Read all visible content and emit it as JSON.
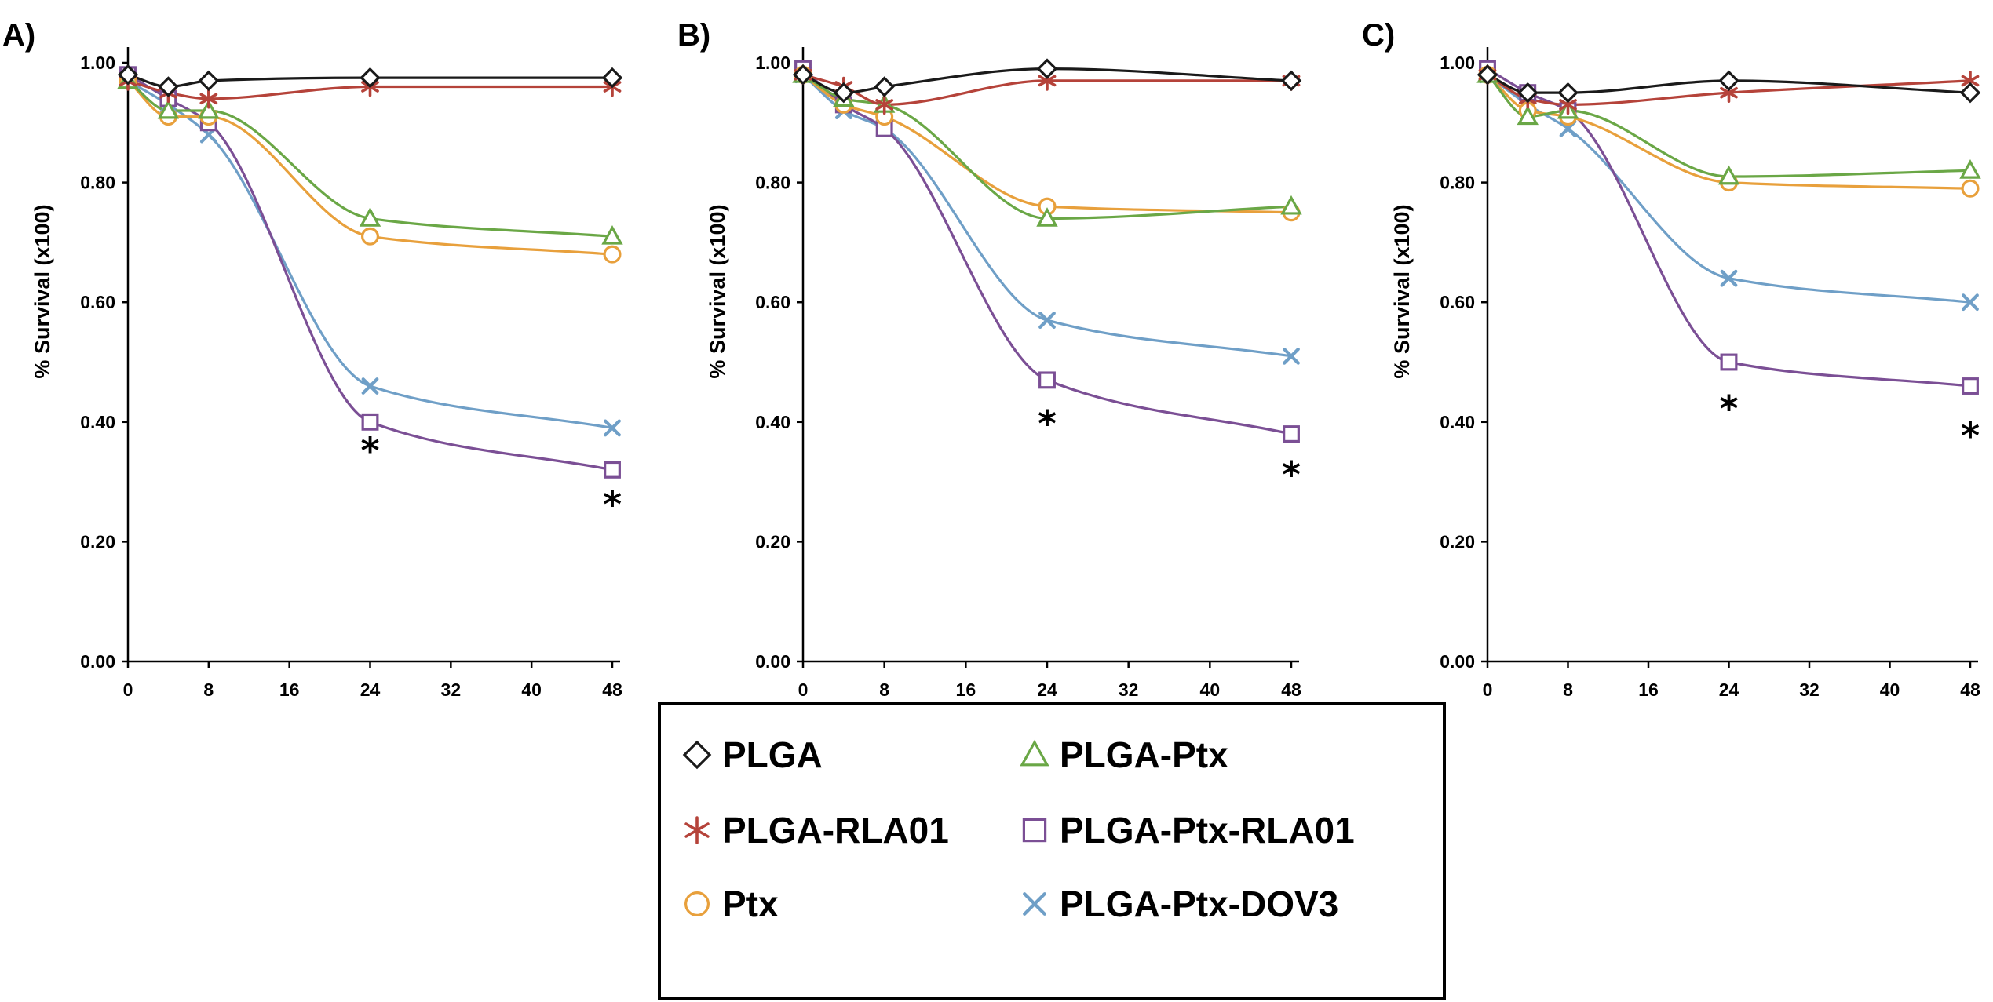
{
  "chart_data": [
    {
      "type": "line",
      "panel_label": "A)",
      "ylabel": "% Survival (x100)",
      "xlabel": "",
      "xlim": [
        0,
        48
      ],
      "ylim": [
        0,
        1
      ],
      "xticks": [
        0,
        8,
        16,
        24,
        32,
        40,
        48
      ],
      "yticks": [
        0.0,
        0.2,
        0.4,
        0.6,
        0.8,
        1.0
      ],
      "xtick_labels": [
        "0",
        "8",
        "16",
        "24",
        "32",
        "40",
        "48"
      ],
      "ytick_labels": [
        "0.00",
        "0.20",
        "0.40",
        "0.60",
        "0.80",
        "1.00"
      ],
      "x": [
        0,
        4,
        8,
        24,
        48
      ],
      "series": [
        {
          "key": "plga",
          "name": "PLGA",
          "values": [
            0.98,
            0.96,
            0.97,
            0.975,
            0.975
          ]
        },
        {
          "key": "plga_rla01",
          "name": "PLGA-RLA01",
          "values": [
            0.97,
            0.95,
            0.94,
            0.96,
            0.96
          ]
        },
        {
          "key": "ptx",
          "name": "Ptx",
          "values": [
            0.97,
            0.91,
            0.91,
            0.71,
            0.68
          ]
        },
        {
          "key": "plga_ptx",
          "name": "PLGA-Ptx",
          "values": [
            0.97,
            0.92,
            0.92,
            0.74,
            0.71
          ]
        },
        {
          "key": "plga_ptx_rla01",
          "name": "PLGA-Ptx-RLA01",
          "values": [
            0.98,
            0.94,
            0.9,
            0.4,
            0.32
          ]
        },
        {
          "key": "plga_ptx_dov3",
          "name": "PLGA-Ptx-DOV3",
          "values": [
            0.97,
            0.93,
            0.88,
            0.46,
            0.39
          ]
        }
      ],
      "significance": [
        {
          "x": 24,
          "y": 0.365,
          "label": "*"
        },
        {
          "x": 48,
          "y": 0.275,
          "label": "*"
        }
      ]
    },
    {
      "type": "line",
      "panel_label": "B)",
      "ylabel": "% Survival (x100)",
      "xlabel": "",
      "xlim": [
        0,
        48
      ],
      "ylim": [
        0,
        1
      ],
      "xticks": [
        0,
        8,
        16,
        24,
        32,
        40,
        48
      ],
      "yticks": [
        0.0,
        0.2,
        0.4,
        0.6,
        0.8,
        1.0
      ],
      "xtick_labels": [
        "0",
        "8",
        "16",
        "24",
        "32",
        "40",
        "48"
      ],
      "ytick_labels": [
        "0.00",
        "0.20",
        "0.40",
        "0.60",
        "0.80",
        "1.00"
      ],
      "x": [
        0,
        4,
        8,
        24,
        48
      ],
      "series": [
        {
          "key": "plga",
          "name": "PLGA",
          "values": [
            0.98,
            0.95,
            0.96,
            0.99,
            0.97
          ]
        },
        {
          "key": "plga_rla01",
          "name": "PLGA-RLA01",
          "values": [
            0.98,
            0.96,
            0.93,
            0.97,
            0.97
          ]
        },
        {
          "key": "ptx",
          "name": "Ptx",
          "values": [
            0.98,
            0.93,
            0.91,
            0.76,
            0.75
          ]
        },
        {
          "key": "plga_ptx",
          "name": "PLGA-Ptx",
          "values": [
            0.98,
            0.94,
            0.93,
            0.74,
            0.76
          ]
        },
        {
          "key": "plga_ptx_rla01",
          "name": "PLGA-Ptx-RLA01",
          "values": [
            0.99,
            0.93,
            0.89,
            0.47,
            0.38
          ]
        },
        {
          "key": "plga_ptx_dov3",
          "name": "PLGA-Ptx-DOV3",
          "values": [
            0.98,
            0.92,
            0.89,
            0.57,
            0.51
          ]
        }
      ],
      "significance": [
        {
          "x": 24,
          "y": 0.41,
          "label": "*"
        },
        {
          "x": 48,
          "y": 0.325,
          "label": "*"
        }
      ]
    },
    {
      "type": "line",
      "panel_label": "C)",
      "ylabel": "% Survival (x100)",
      "xlabel": "",
      "xlim": [
        0,
        48
      ],
      "ylim": [
        0,
        1
      ],
      "xticks": [
        0,
        8,
        16,
        24,
        32,
        40,
        48
      ],
      "yticks": [
        0.0,
        0.2,
        0.4,
        0.6,
        0.8,
        1.0
      ],
      "xtick_labels": [
        "0",
        "8",
        "16",
        "24",
        "32",
        "40",
        "48"
      ],
      "ytick_labels": [
        "0.00",
        "0.20",
        "0.40",
        "0.60",
        "0.80",
        "1.00"
      ],
      "x": [
        0,
        4,
        8,
        24,
        48
      ],
      "series": [
        {
          "key": "plga",
          "name": "PLGA",
          "values": [
            0.98,
            0.95,
            0.95,
            0.97,
            0.95
          ]
        },
        {
          "key": "plga_rla01",
          "name": "PLGA-RLA01",
          "values": [
            0.98,
            0.94,
            0.93,
            0.95,
            0.97
          ]
        },
        {
          "key": "ptx",
          "name": "Ptx",
          "values": [
            0.98,
            0.92,
            0.91,
            0.8,
            0.79
          ]
        },
        {
          "key": "plga_ptx",
          "name": "PLGA-Ptx",
          "values": [
            0.98,
            0.91,
            0.92,
            0.81,
            0.82
          ]
        },
        {
          "key": "plga_ptx_rla01",
          "name": "PLGA-Ptx-RLA01",
          "values": [
            0.99,
            0.95,
            0.92,
            0.5,
            0.46
          ]
        },
        {
          "key": "plga_ptx_dov3",
          "name": "PLGA-Ptx-DOV3",
          "values": [
            0.98,
            0.93,
            0.89,
            0.64,
            0.6
          ]
        }
      ],
      "significance": [
        {
          "x": 24,
          "y": 0.435,
          "label": "*"
        },
        {
          "x": 48,
          "y": 0.39,
          "label": "*"
        }
      ]
    }
  ],
  "series_styles": {
    "plga": {
      "marker": "diamond",
      "color": "#1a1a1a",
      "label": "PLGA"
    },
    "plga_rla01": {
      "marker": "asterisk",
      "color": "#b5433a",
      "label": "PLGA-RLA01"
    },
    "ptx": {
      "marker": "circle",
      "color": "#e8a03c",
      "label": "Ptx"
    },
    "plga_ptx": {
      "marker": "triangle",
      "color": "#6aa746",
      "label": "PLGA-Ptx"
    },
    "plga_ptx_rla01": {
      "marker": "square",
      "color": "#7b4f95",
      "label": "PLGA-Ptx-RLA01"
    },
    "plga_ptx_dov3": {
      "marker": "cross",
      "color": "#6f9fc7",
      "label": "PLGA-Ptx-DOV3"
    }
  },
  "legend": {
    "placement": "bottom-center",
    "entries": [
      "PLGA",
      "PLGA-RLA01",
      "Ptx",
      "PLGA-Ptx",
      "PLGA-Ptx-RLA01",
      "PLGA-Ptx-DOV3"
    ]
  }
}
